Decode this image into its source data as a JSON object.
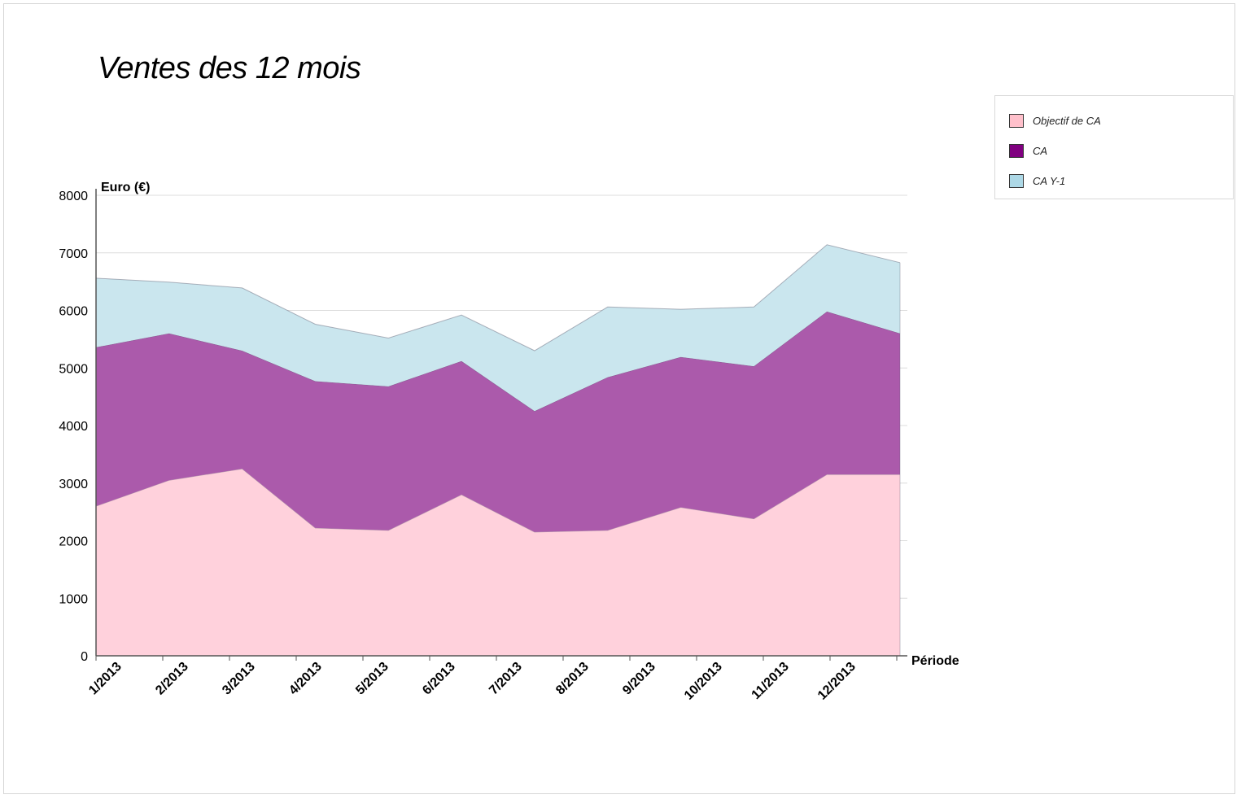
{
  "chart_data": {
    "type": "area",
    "stacked": true,
    "title": "Ventes des 12 mois",
    "ylabel": "Euro (€)",
    "xlabel": "Période",
    "ylim": [
      0,
      8000
    ],
    "yticks": [
      0,
      1000,
      2000,
      3000,
      4000,
      5000,
      6000,
      7000,
      8000
    ],
    "grid": true,
    "legend_position": "top-right",
    "categories": [
      "1/2013",
      "2/2013",
      "3/2013",
      "4/2013",
      "5/2013",
      "6/2013",
      "7/2013",
      "8/2013",
      "9/2013",
      "10/2013",
      "11/2013",
      "12/2013"
    ],
    "series": [
      {
        "name": "Objectif de CA",
        "color": "#ffd1dc",
        "legend_color": "#ffc0cb",
        "values": [
          2600,
          3050,
          3250,
          2220,
          2180,
          2800,
          2150,
          2180,
          2580,
          2380,
          3150,
          3150
        ]
      },
      {
        "name": "CA",
        "color": "#ab5aab",
        "legend_color": "#800080",
        "values": [
          2760,
          2550,
          2050,
          2550,
          2500,
          2320,
          2100,
          2660,
          2610,
          2650,
          2830,
          2450
        ]
      },
      {
        "name": "CA Y-1",
        "color": "#cae6ee",
        "legend_color": "#add8e6",
        "values": [
          1200,
          890,
          1090,
          990,
          840,
          800,
          1050,
          1220,
          830,
          1030,
          1160,
          1230
        ]
      }
    ]
  }
}
